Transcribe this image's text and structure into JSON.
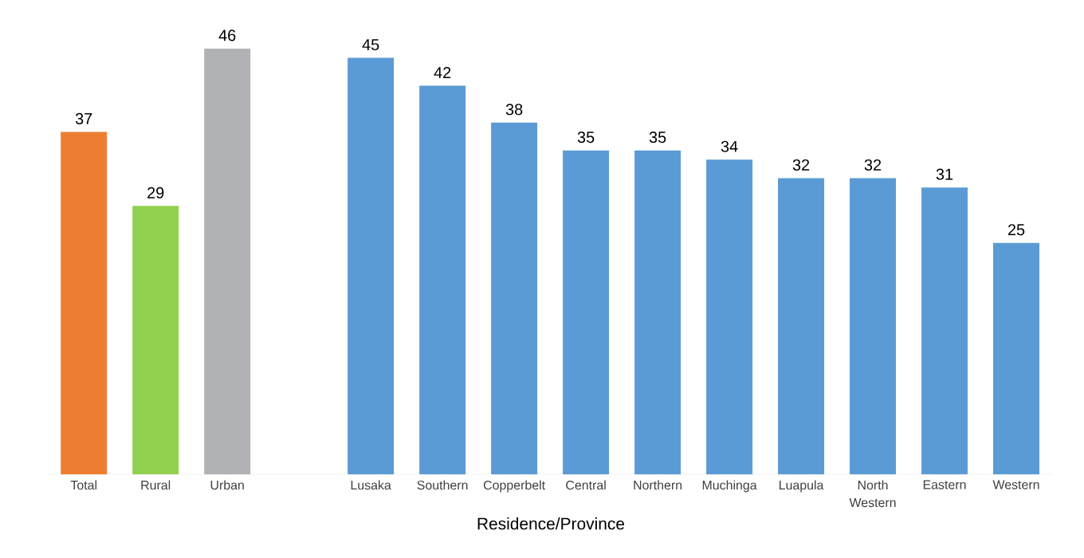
{
  "chart_data": {
    "type": "bar",
    "xlabel": "Residence/Province",
    "categories": [
      "Total",
      "Rural",
      "Urban",
      null,
      "Lusaka",
      "Southern",
      "Copperbelt",
      "Central",
      "Northern",
      "Muchinga",
      "Luapula",
      "North Western",
      "Eastern",
      "Western"
    ],
    "values": [
      37,
      29,
      46,
      null,
      45,
      42,
      38,
      35,
      35,
      34,
      32,
      32,
      31,
      25
    ],
    "colors": [
      "#ed7d31",
      "#92d050",
      "#b1b2b6",
      null,
      "#5b9bd5",
      "#5b9bd5",
      "#5b9bd5",
      "#5b9bd5",
      "#5b9bd5",
      "#5b9bd5",
      "#5b9bd5",
      "#5b9bd5",
      "#5b9bd5",
      "#5b9bd5"
    ],
    "data_labels": true
  }
}
